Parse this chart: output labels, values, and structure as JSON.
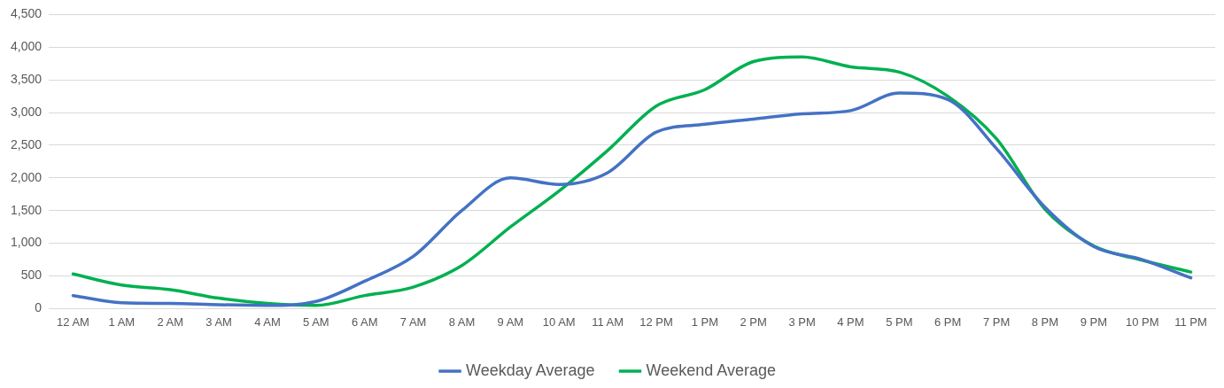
{
  "chart_data": {
    "type": "line",
    "categories": [
      "12 AM",
      "1 AM",
      "2 AM",
      "3 AM",
      "4 AM",
      "5 AM",
      "6 AM",
      "7 AM",
      "8 AM",
      "9 AM",
      "10 AM",
      "11 AM",
      "12 PM",
      "1 PM",
      "2 PM",
      "3 PM",
      "4 PM",
      "5 PM",
      "6 PM",
      "7 PM",
      "8 PM",
      "9 PM",
      "10 PM",
      "11 PM"
    ],
    "series": [
      {
        "name": "Weekday Average",
        "color": "#4472c4",
        "values": [
          200,
          90,
          80,
          60,
          50,
          110,
          420,
          800,
          1500,
          2000,
          1900,
          2080,
          2700,
          2820,
          2900,
          2980,
          3030,
          3300,
          3200,
          2450,
          1550,
          950,
          750,
          470
        ]
      },
      {
        "name": "Weekend Average",
        "color": "#00b050",
        "values": [
          530,
          360,
          290,
          160,
          80,
          50,
          200,
          330,
          660,
          1250,
          1800,
          2420,
          3100,
          3350,
          3780,
          3850,
          3700,
          3620,
          3250,
          2600,
          1520,
          960,
          740,
          560
        ]
      }
    ],
    "ylim": [
      0,
      4500
    ],
    "yticks": [
      0,
      500,
      {
        "value": 1000,
        "label": "1,000"
      },
      {
        "value": 1500,
        "label": "1,500"
      },
      {
        "value": 2000,
        "label": "2,000"
      },
      {
        "value": 2500,
        "label": "2,500"
      },
      {
        "value": 3000,
        "label": "3,000"
      },
      {
        "value": 3500,
        "label": "3,500"
      },
      {
        "value": 4000,
        "label": "4,000"
      },
      {
        "value": 4500,
        "label": "4,500"
      }
    ],
    "grid": "y",
    "legend": "bottom",
    "marker": "none",
    "line_style": "solid"
  }
}
